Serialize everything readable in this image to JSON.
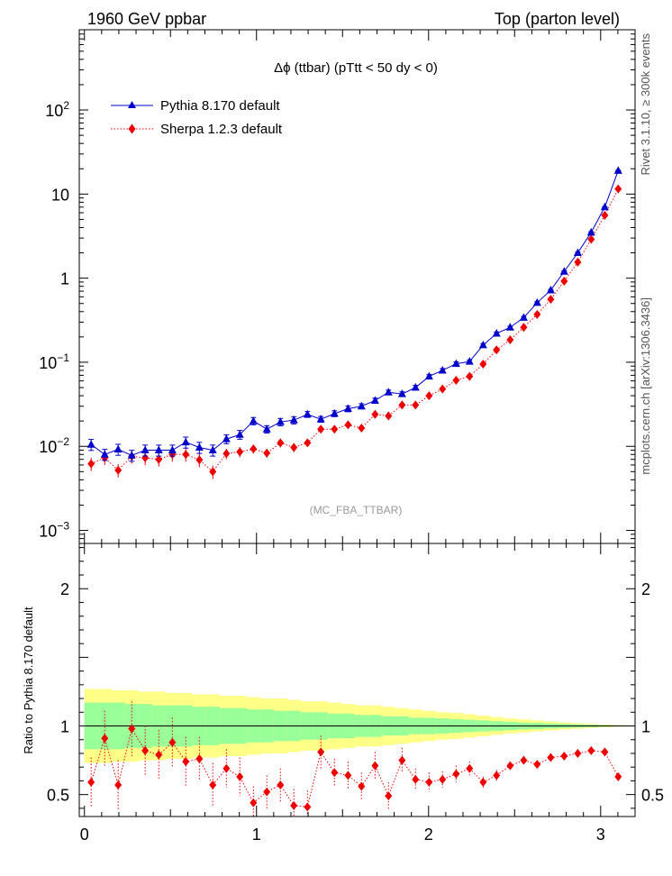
{
  "header": {
    "left": "1960 GeV ppbar",
    "right": "Top (parton level)"
  },
  "side_labels": {
    "top": "Rivet 3.1.10, ≥ 300k events",
    "bottom": "mcplots.cern.ch [arXiv:1306.3436]"
  },
  "colors": {
    "pythia": "#0000cc",
    "sherpa": "#ee0000",
    "band_inner": "#99ff99",
    "band_outer": "#ffff88",
    "axis": "#000000",
    "watermark": "#999999"
  },
  "chart_data": [
    {
      "type": "line",
      "title": "Δϕ (ttbar) (pTtt < 50 dy < 0)",
      "watermark": "(MC_FBA_TTBAR)",
      "yscale": "log",
      "ylim": [
        0.0007,
        900
      ],
      "xlim": [
        -0.03,
        3.2
      ],
      "yticks": [
        {
          "value": 0.001,
          "base": "10",
          "exp": "−3"
        },
        {
          "value": 0.01,
          "base": "10",
          "exp": "−2"
        },
        {
          "value": 0.1,
          "base": "10",
          "exp": "−1"
        },
        {
          "value": 1,
          "base": "1",
          "exp": ""
        },
        {
          "value": 10,
          "base": "10",
          "exp": ""
        },
        {
          "value": 100,
          "base": "10",
          "exp": "2"
        }
      ],
      "legend": {
        "position": "top-left"
      },
      "x": [
        0.039,
        0.118,
        0.196,
        0.275,
        0.353,
        0.432,
        0.511,
        0.589,
        0.668,
        0.746,
        0.825,
        0.903,
        0.982,
        1.06,
        1.139,
        1.217,
        1.296,
        1.374,
        1.453,
        1.532,
        1.61,
        1.689,
        1.767,
        1.846,
        1.924,
        2.003,
        2.081,
        2.16,
        2.238,
        2.317,
        2.395,
        2.474,
        2.553,
        2.631,
        2.71,
        2.788,
        2.867,
        2.945,
        3.024,
        3.102
      ],
      "series": [
        {
          "name": "Pythia 8.170 default",
          "marker": "triangle",
          "line": "solid",
          "values": [
            0.0105,
            0.008,
            0.0092,
            0.0078,
            0.009,
            0.009,
            0.009,
            0.0112,
            0.0097,
            0.009,
            0.0122,
            0.0138,
            0.02,
            0.016,
            0.0195,
            0.0205,
            0.024,
            0.021,
            0.0245,
            0.028,
            0.03,
            0.035,
            0.044,
            0.042,
            0.05,
            0.068,
            0.08,
            0.096,
            0.102,
            0.16,
            0.22,
            0.26,
            0.34,
            0.51,
            0.72,
            1.2,
            2.0,
            3.5,
            7.0,
            19.0
          ],
          "err": [
            0.15,
            0.15,
            0.15,
            0.15,
            0.15,
            0.15,
            0.15,
            0.15,
            0.15,
            0.15,
            0.12,
            0.12,
            0.1,
            0.1,
            0.1,
            0.1,
            0.08,
            0.08,
            0.08,
            0.08,
            0.07,
            0.07,
            0.06,
            0.06,
            0.06,
            0.05,
            0.05,
            0.05,
            0.04,
            0.04,
            0.04,
            0.03,
            0.03,
            0.03,
            0.02,
            0.02,
            0.02,
            0.02,
            0.01,
            0.01
          ]
        },
        {
          "name": "Sherpa 1.2.3 default",
          "marker": "diamond",
          "line": "dotted",
          "values": [
            0.0062,
            0.0073,
            0.0052,
            0.0076,
            0.0073,
            0.007,
            0.008,
            0.008,
            0.0069,
            0.005,
            0.0082,
            0.0086,
            0.0093,
            0.0083,
            0.011,
            0.0097,
            0.011,
            0.016,
            0.016,
            0.018,
            0.0165,
            0.024,
            0.023,
            0.031,
            0.031,
            0.04,
            0.048,
            0.061,
            0.068,
            0.095,
            0.14,
            0.185,
            0.26,
            0.37,
            0.56,
            0.92,
            1.55,
            2.9,
            5.6,
            11.5
          ],
          "err": [
            0.18,
            0.18,
            0.18,
            0.18,
            0.18,
            0.18,
            0.18,
            0.18,
            0.18,
            0.18,
            0.14,
            0.14,
            0.12,
            0.12,
            0.12,
            0.12,
            0.1,
            0.1,
            0.09,
            0.09,
            0.08,
            0.08,
            0.07,
            0.07,
            0.07,
            0.06,
            0.06,
            0.05,
            0.05,
            0.04,
            0.04,
            0.04,
            0.03,
            0.03,
            0.03,
            0.02,
            0.02,
            0.02,
            0.02,
            0.01
          ]
        }
      ]
    },
    {
      "type": "line",
      "ylabel": "Ratio to Pythia 8.170 default",
      "ylim": [
        0.34,
        2.33
      ],
      "xlim": [
        -0.03,
        3.2
      ],
      "yticks": [
        0.5,
        1,
        2
      ],
      "xticks": [
        0,
        1,
        2,
        3
      ],
      "reference_line": 1,
      "band_inner_halfwidth": [
        0.17,
        0.17,
        0.17,
        0.16,
        0.16,
        0.15,
        0.15,
        0.15,
        0.14,
        0.14,
        0.13,
        0.13,
        0.12,
        0.12,
        0.11,
        0.11,
        0.1,
        0.1,
        0.09,
        0.09,
        0.08,
        0.08,
        0.07,
        0.07,
        0.06,
        0.06,
        0.055,
        0.05,
        0.045,
        0.04,
        0.035,
        0.03,
        0.025,
        0.022,
        0.018,
        0.015,
        0.012,
        0.009,
        0.006,
        0.004
      ],
      "band_outer_halfwidth": [
        0.27,
        0.27,
        0.26,
        0.26,
        0.25,
        0.25,
        0.24,
        0.24,
        0.23,
        0.23,
        0.22,
        0.22,
        0.21,
        0.2,
        0.2,
        0.19,
        0.18,
        0.18,
        0.17,
        0.16,
        0.15,
        0.15,
        0.14,
        0.13,
        0.12,
        0.11,
        0.1,
        0.095,
        0.085,
        0.075,
        0.065,
        0.055,
        0.048,
        0.04,
        0.033,
        0.026,
        0.02,
        0.015,
        0.01,
        0.006
      ],
      "series": [
        {
          "name": "Sherpa 1.2.3 default",
          "values": [
            0.59,
            0.91,
            0.57,
            0.98,
            0.82,
            0.79,
            0.88,
            0.74,
            0.76,
            0.57,
            0.69,
            0.63,
            0.44,
            0.52,
            0.57,
            0.42,
            0.41,
            0.81,
            0.66,
            0.64,
            0.56,
            0.71,
            0.49,
            0.75,
            0.61,
            0.59,
            0.61,
            0.65,
            0.69,
            0.59,
            0.64,
            0.71,
            0.75,
            0.72,
            0.77,
            0.78,
            0.8,
            0.82,
            0.81,
            0.63
          ],
          "err": [
            0.18,
            0.2,
            0.18,
            0.2,
            0.18,
            0.18,
            0.18,
            0.18,
            0.16,
            0.16,
            0.14,
            0.14,
            0.12,
            0.12,
            0.12,
            0.12,
            0.12,
            0.12,
            0.1,
            0.1,
            0.1,
            0.1,
            0.1,
            0.09,
            0.08,
            0.07,
            0.06,
            0.06,
            0.05,
            0.04,
            0.04,
            0.03,
            0.03,
            0.02,
            0.02,
            0.02,
            0.01,
            0.01,
            0.01,
            0.01
          ]
        }
      ]
    }
  ]
}
